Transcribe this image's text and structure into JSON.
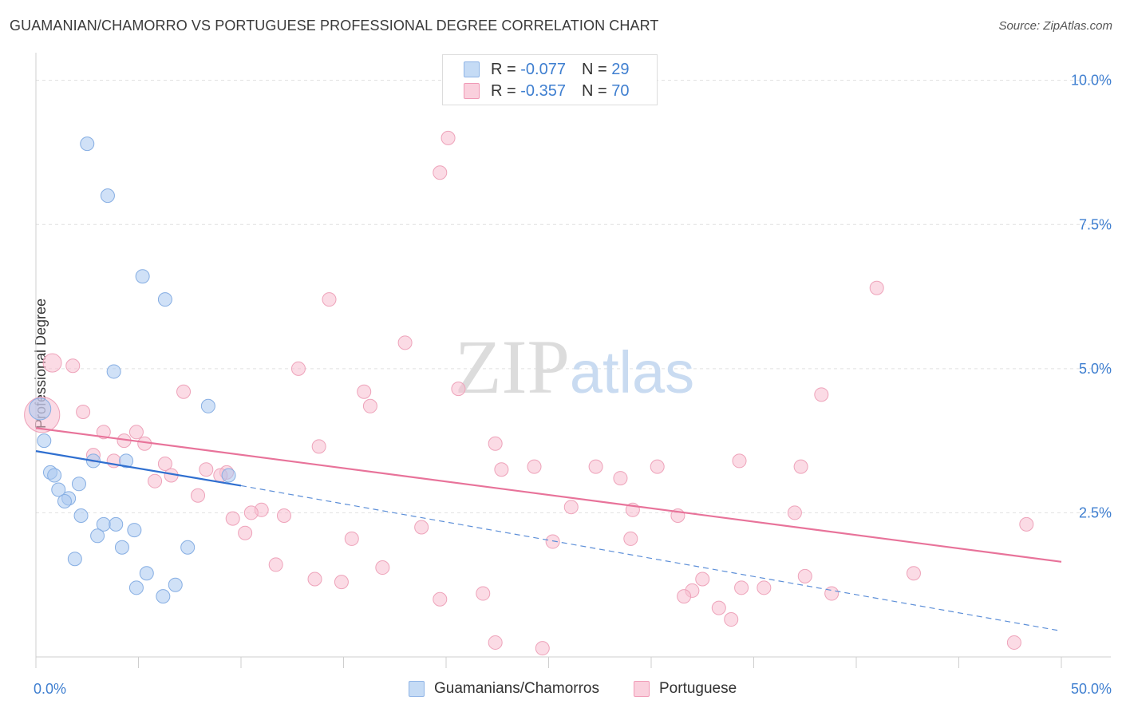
{
  "chart_data": {
    "type": "scatter",
    "title": "GUAMANIAN/CHAMORRO VS PORTUGUESE PROFESSIONAL DEGREE CORRELATION CHART",
    "source": "Source: ZipAtlas.com",
    "watermark": "ZIPatlas",
    "xlabel": "",
    "ylabel": "Professional Degree",
    "xlim": [
      0,
      50
    ],
    "ylim": [
      0,
      10.3
    ],
    "x_tick_labels": [
      "0.0%",
      "50.0%"
    ],
    "y_ticks": [
      2.5,
      5.0,
      7.5,
      10.0
    ],
    "y_tick_labels": [
      "2.5%",
      "5.0%",
      "7.5%",
      "10.0%"
    ],
    "legend": {
      "rows": [
        {
          "r_label": "R =",
          "r_value": "-0.077",
          "n_label": "N =",
          "n_value": "29"
        },
        {
          "r_label": "R =",
          "r_value": "-0.357",
          "n_label": "N =",
          "n_value": "70"
        }
      ]
    },
    "series": [
      {
        "name": "Guamanians/Chamorros",
        "color": "#a9c9f0",
        "line_color": "#2f6fd0",
        "trend": {
          "x0": 0,
          "y0": 3.57,
          "x1": 10,
          "y1": 2.97,
          "dash_to_x": 50,
          "dash_to_y": 0.45
        },
        "points": [
          [
            2.5,
            8.9
          ],
          [
            3.5,
            8.0
          ],
          [
            5.2,
            6.6
          ],
          [
            6.3,
            6.2
          ],
          [
            3.8,
            4.95
          ],
          [
            8.4,
            4.35
          ],
          [
            0.4,
            3.75
          ],
          [
            2.8,
            3.4
          ],
          [
            4.4,
            3.4
          ],
          [
            0.7,
            3.2
          ],
          [
            0.9,
            3.15
          ],
          [
            9.4,
            3.15
          ],
          [
            2.1,
            3.0
          ],
          [
            1.1,
            2.9
          ],
          [
            1.6,
            2.75
          ],
          [
            1.4,
            2.7
          ],
          [
            2.2,
            2.45
          ],
          [
            3.3,
            2.3
          ],
          [
            3.9,
            2.3
          ],
          [
            4.8,
            2.2
          ],
          [
            3.0,
            2.1
          ],
          [
            4.2,
            1.9
          ],
          [
            7.4,
            1.9
          ],
          [
            1.9,
            1.7
          ],
          [
            5.4,
            1.45
          ],
          [
            6.8,
            1.25
          ],
          [
            4.9,
            1.2
          ],
          [
            6.2,
            1.05
          ],
          [
            0.2,
            4.3
          ]
        ],
        "sizes": [
          1,
          1,
          1,
          1,
          1,
          1,
          1,
          1,
          1,
          1,
          1,
          1,
          1,
          1,
          1,
          1,
          1,
          1,
          1,
          1,
          1,
          1,
          1,
          1,
          1,
          1,
          1,
          1,
          1.6
        ]
      },
      {
        "name": "Portuguese",
        "color": "#f7bdd0",
        "line_color": "#e8739a",
        "trend": {
          "x0": 0,
          "y0": 3.97,
          "x1": 50,
          "y1": 1.65
        },
        "points": [
          [
            20.1,
            9.0
          ],
          [
            19.7,
            8.4
          ],
          [
            41.0,
            6.4
          ],
          [
            14.3,
            6.2
          ],
          [
            18.0,
            5.45
          ],
          [
            0.8,
            5.1
          ],
          [
            1.8,
            5.05
          ],
          [
            12.8,
            5.0
          ],
          [
            16.0,
            4.6
          ],
          [
            7.2,
            4.6
          ],
          [
            20.6,
            4.65
          ],
          [
            38.3,
            4.55
          ],
          [
            16.3,
            4.35
          ],
          [
            2.3,
            4.25
          ],
          [
            0.3,
            4.2
          ],
          [
            3.3,
            3.9
          ],
          [
            4.9,
            3.9
          ],
          [
            4.3,
            3.75
          ],
          [
            5.3,
            3.7
          ],
          [
            13.8,
            3.65
          ],
          [
            22.4,
            3.7
          ],
          [
            2.8,
            3.5
          ],
          [
            3.8,
            3.4
          ],
          [
            6.3,
            3.35
          ],
          [
            34.3,
            3.4
          ],
          [
            24.3,
            3.3
          ],
          [
            27.3,
            3.3
          ],
          [
            30.3,
            3.3
          ],
          [
            37.3,
            3.3
          ],
          [
            8.3,
            3.25
          ],
          [
            9.3,
            3.2
          ],
          [
            22.7,
            3.25
          ],
          [
            6.6,
            3.15
          ],
          [
            9.0,
            3.15
          ],
          [
            28.5,
            3.1
          ],
          [
            5.8,
            3.05
          ],
          [
            7.9,
            2.8
          ],
          [
            26.1,
            2.6
          ],
          [
            29.1,
            2.55
          ],
          [
            37.0,
            2.5
          ],
          [
            11.0,
            2.55
          ],
          [
            10.5,
            2.5
          ],
          [
            12.1,
            2.45
          ],
          [
            31.3,
            2.45
          ],
          [
            9.6,
            2.4
          ],
          [
            48.3,
            2.3
          ],
          [
            18.8,
            2.25
          ],
          [
            10.2,
            2.15
          ],
          [
            15.4,
            2.05
          ],
          [
            25.2,
            2.0
          ],
          [
            29.0,
            2.05
          ],
          [
            11.7,
            1.6
          ],
          [
            16.9,
            1.55
          ],
          [
            42.8,
            1.45
          ],
          [
            37.5,
            1.4
          ],
          [
            32.5,
            1.35
          ],
          [
            13.6,
            1.35
          ],
          [
            14.9,
            1.3
          ],
          [
            35.5,
            1.2
          ],
          [
            34.4,
            1.2
          ],
          [
            32.0,
            1.15
          ],
          [
            21.8,
            1.1
          ],
          [
            38.8,
            1.1
          ],
          [
            31.6,
            1.05
          ],
          [
            19.7,
            1.0
          ],
          [
            33.3,
            0.85
          ],
          [
            33.9,
            0.65
          ],
          [
            24.7,
            0.15
          ],
          [
            47.7,
            0.25
          ],
          [
            22.4,
            0.25
          ]
        ],
        "sizes": [
          1,
          1,
          1,
          1,
          1,
          1.35,
          1,
          1,
          1,
          1,
          1,
          1,
          1,
          1,
          2.6,
          1,
          1,
          1,
          1,
          1,
          1,
          1,
          1,
          1,
          1,
          1,
          1,
          1,
          1,
          1,
          1,
          1,
          1,
          1,
          1,
          1,
          1,
          1,
          1,
          1,
          1,
          1,
          1,
          1,
          1,
          1,
          1,
          1,
          1,
          1,
          1,
          1,
          1,
          1,
          1,
          1,
          1,
          1,
          1,
          1,
          1,
          1,
          1,
          1,
          1,
          1,
          1,
          1,
          1,
          1
        ]
      }
    ]
  }
}
